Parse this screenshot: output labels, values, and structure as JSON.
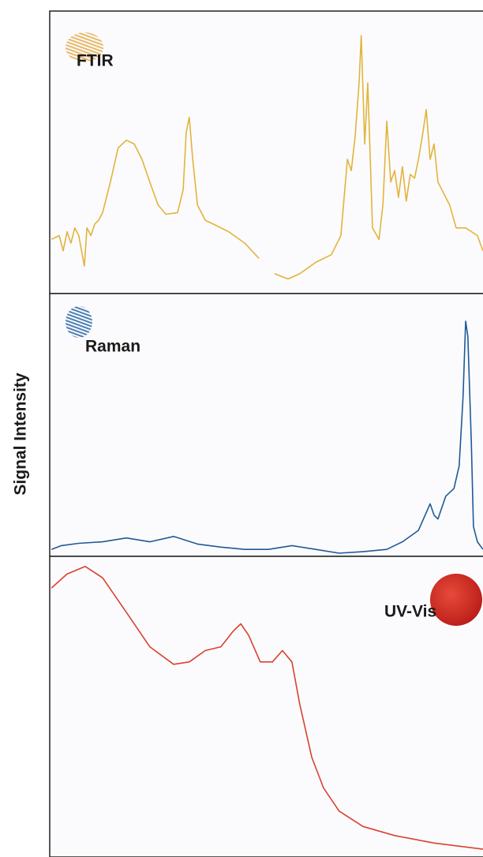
{
  "y_label": "Signal Intensity",
  "chart_data": [
    {
      "type": "line",
      "xlim": [
        0,
        100
      ],
      "ylim": [
        0,
        100
      ],
      "x": [
        0.4,
        2.2,
        3.1,
        4.0,
        4.9,
        5.8,
        6.7,
        8.0,
        8.6,
        9.5,
        10.4,
        11.3,
        12.2,
        14.0,
        15.8,
        17.7,
        19.5,
        21.3,
        23.1,
        25.0,
        26.8,
        29.5,
        30.8,
        31.5,
        32.2,
        33.0,
        34.1,
        35.9,
        37.7,
        41.3,
        45.0,
        48.3,
        50.0,
        51.9,
        55.0,
        57.7,
        61.4,
        65.0,
        67.2,
        68.7,
        69.6,
        70.5,
        71.4,
        71.9,
        72.7,
        73.4,
        74.5,
        76.0,
        76.9,
        77.8,
        78.7,
        79.6,
        80.5,
        81.4,
        82.3,
        83.2,
        84.2,
        85.1,
        86.0,
        86.9,
        87.8,
        88.7,
        89.6,
        90.5,
        92.3,
        93.8,
        96.0,
        98.7,
        100
      ],
      "series": [
        {
          "name": "FTIR",
          "color": "#e2b43c",
          "values": [
            18.7,
            20.1,
            14.5,
            21.5,
            17.3,
            22.9,
            20.1,
            8.9,
            22.9,
            20.1,
            24.3,
            25.7,
            28.5,
            39.7,
            52.2,
            55.0,
            53.6,
            48.0,
            39.7,
            31.3,
            27.9,
            28.5,
            36.9,
            57.8,
            63.4,
            48.0,
            31.3,
            25.7,
            24.3,
            21.5,
            17.3,
            11.7,
            null,
            6.1,
            4.2,
            6.1,
            10.3,
            13.1,
            20.1,
            48.0,
            43.9,
            56.4,
            76.0,
            93.3,
            53.6,
            76.0,
            22.9,
            18.7,
            31.3,
            62.0,
            39.7,
            43.9,
            34.1,
            45.3,
            32.7,
            42.5,
            41.1,
            48.0,
            56.4,
            66.2,
            48.0,
            53.6,
            39.7,
            36.9,
            31.3,
            22.9,
            22.9,
            20.1,
            14.5
          ]
        }
      ]
    },
    {
      "type": "line",
      "xlim": [
        0,
        100
      ],
      "ylim": [
        0,
        100
      ],
      "x": [
        0.4,
        2.7,
        6.7,
        12.2,
        17.7,
        23.1,
        28.6,
        34.1,
        39.5,
        45.0,
        50.5,
        55.9,
        61.4,
        66.8,
        72.3,
        77.8,
        81.4,
        85.1,
        87.8,
        88.7,
        89.6,
        91.4,
        93.3,
        94.5,
        95.4,
        96.0,
        96.5,
        97.3,
        97.8,
        98.7,
        100
      ],
      "series": [
        {
          "name": "Raman",
          "color": "#1f5a96",
          "values": [
            1.5,
            3.0,
            3.9,
            4.5,
            6.0,
            4.5,
            6.6,
            3.6,
            2.4,
            1.5,
            1.5,
            3.0,
            1.5,
            0,
            0.6,
            1.5,
            4.5,
            9.0,
            19.5,
            15.0,
            13.5,
            22.5,
            25.5,
            34.5,
            61.6,
            91.6,
            85.6,
            43.8,
            10.5,
            4.5,
            1.5
          ]
        }
      ]
    },
    {
      "type": "line",
      "xlim": [
        0,
        100
      ],
      "ylim": [
        0,
        100
      ],
      "x": [
        0.4,
        4.0,
        8.2,
        12.2,
        17.7,
        23.1,
        28.6,
        32.2,
        35.9,
        39.5,
        42.3,
        44.1,
        45.9,
        48.6,
        51.4,
        53.7,
        55.9,
        57.7,
        60.5,
        63.2,
        66.8,
        72.3,
        79.6,
        88.7,
        100
      ],
      "series": [
        {
          "name": "UV-Vis",
          "color": "#d9412f",
          "values": [
            91.3,
            96.1,
            98.7,
            94.8,
            82.9,
            71.1,
            65.1,
            65.9,
            69.8,
            71.1,
            76.4,
            79.0,
            75.1,
            65.9,
            65.9,
            69.8,
            65.9,
            51.4,
            33.1,
            22.6,
            14.7,
            9.4,
            6.3,
            3.7,
            1.6
          ]
        }
      ]
    }
  ]
}
